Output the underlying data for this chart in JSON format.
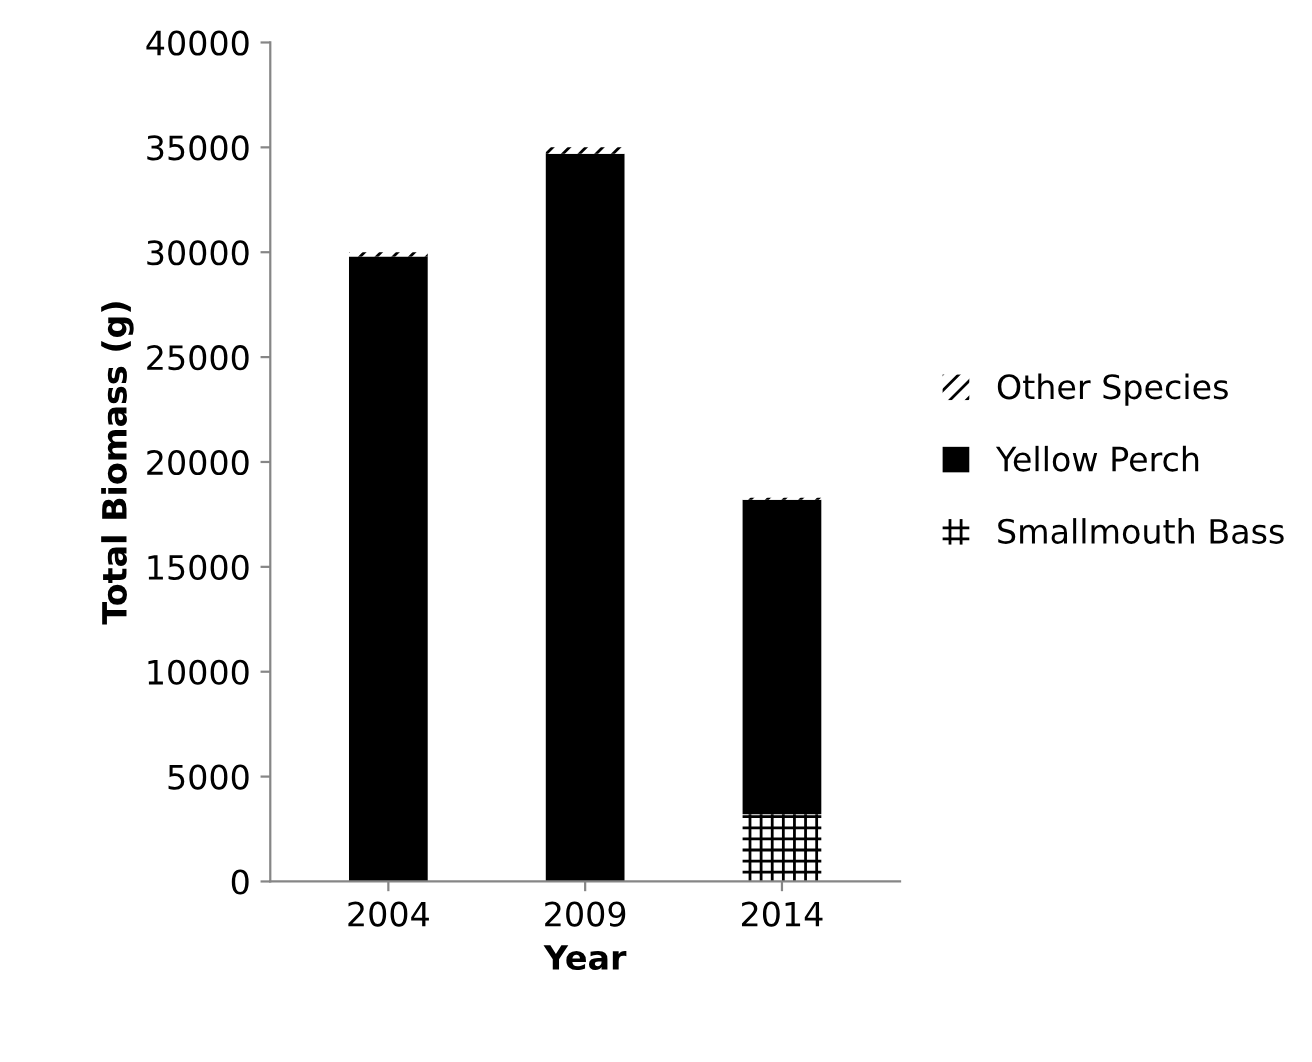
{
  "chart_data": {
    "type": "bar",
    "stacked": true,
    "xlabel": "Year",
    "ylabel": "Total Biomass (g)",
    "categories": [
      "2004",
      "2009",
      "2014"
    ],
    "series": [
      {
        "name": "Smallmouth Bass",
        "color": "#000000",
        "values": [
          null,
          null,
          3200
        ]
      },
      {
        "name": "Yellow Perch",
        "color": "#000000",
        "values": [
          29800,
          34700,
          15000
        ]
      },
      {
        "name": "Other Species",
        "color": "#000000",
        "values": [
          200,
          300,
          100
        ]
      }
    ],
    "ylim": [
      0,
      40000
    ],
    "yticks": [
      0,
      5000,
      10000,
      15000,
      20000,
      25000,
      30000,
      35000,
      40000
    ],
    "grid": false,
    "legend": "right"
  }
}
